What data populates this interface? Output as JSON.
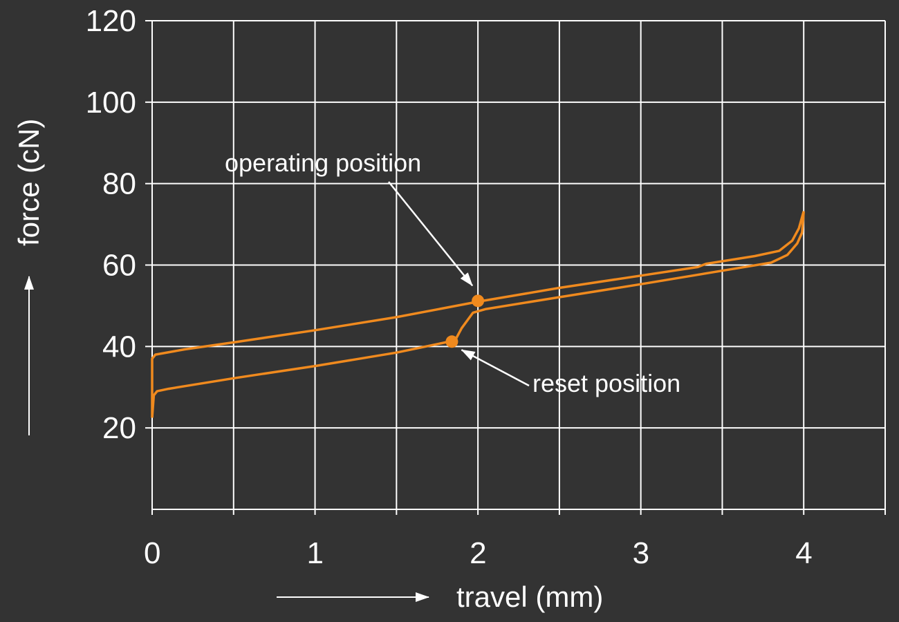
{
  "chart_data": {
    "type": "line",
    "title": "",
    "xlabel": "travel (mm)",
    "ylabel": "force (cN)",
    "xlim": [
      0,
      4.5
    ],
    "ylim": [
      0,
      120
    ],
    "x_ticks": [
      0,
      1,
      2,
      3,
      4
    ],
    "x_tick_labels": [
      "0",
      "1",
      "2",
      "3",
      "4"
    ],
    "y_ticks": [
      20,
      40,
      60,
      80,
      100,
      120
    ],
    "y_tick_labels": [
      "20",
      "40",
      "60",
      "80",
      "100",
      "120"
    ],
    "grid": true,
    "colors": {
      "background": "#333333",
      "grid": "#ffffff",
      "curve": "#f08a1e",
      "text": "#ffffff"
    },
    "series": [
      {
        "points": [
          [
            0.0,
            22.5
          ],
          [
            0.0,
            37
          ],
          [
            0.02,
            38
          ],
          [
            0.2,
            39.3
          ],
          [
            0.5,
            41
          ],
          [
            1.0,
            44
          ],
          [
            1.5,
            47.2
          ],
          [
            2.0,
            51.0
          ],
          [
            2.5,
            54.4
          ],
          [
            3.0,
            57.4
          ],
          [
            3.35,
            59.5
          ],
          [
            3.4,
            60.3
          ],
          [
            3.7,
            62.2
          ],
          [
            3.85,
            63.5
          ],
          [
            3.93,
            66
          ],
          [
            3.97,
            69
          ],
          [
            4.0,
            73.2
          ]
        ]
      },
      {
        "points": [
          [
            4.0,
            73.2
          ],
          [
            3.99,
            68
          ],
          [
            3.96,
            65.3
          ],
          [
            3.9,
            62.5
          ],
          [
            3.8,
            60.6
          ],
          [
            3.5,
            58.6
          ],
          [
            3.0,
            55.3
          ],
          [
            2.5,
            52.1
          ],
          [
            2.05,
            49.2
          ],
          [
            1.97,
            48.3
          ],
          [
            1.9,
            44.5
          ],
          [
            1.86,
            41.5
          ],
          [
            1.5,
            38.5
          ],
          [
            1.0,
            35.2
          ],
          [
            0.5,
            32.2
          ],
          [
            0.1,
            29.6
          ],
          [
            0.03,
            29.0
          ],
          [
            0.01,
            28.0
          ],
          [
            0.0,
            22.5
          ]
        ]
      }
    ],
    "markers": [
      {
        "name": "operating",
        "x": 2.0,
        "y": 51.2
      },
      {
        "name": "reset",
        "x": 1.84,
        "y": 41.2
      }
    ],
    "annotations": [
      {
        "text": "operating position",
        "target": "operating"
      },
      {
        "text": "reset position",
        "target": "reset"
      }
    ]
  }
}
